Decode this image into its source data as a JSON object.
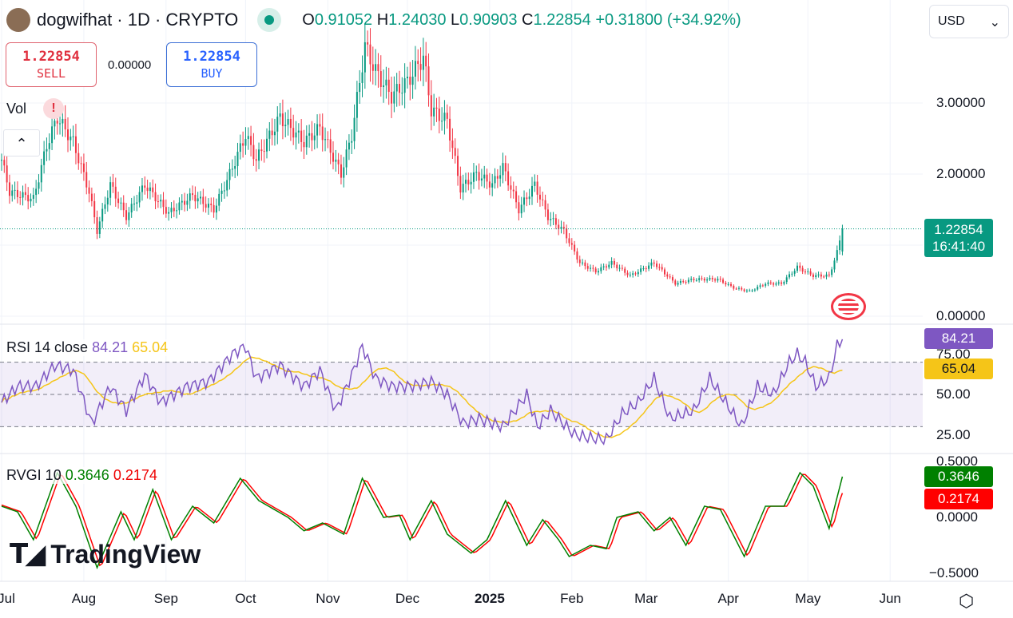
{
  "header": {
    "symbol": "dogwifhat · 1D · CRYPTO",
    "open_label": "O",
    "open": "0.91052",
    "high_label": "H",
    "high": "1.24030",
    "low_label": "L",
    "low": "0.90903",
    "close_label": "C",
    "close": "1.22854",
    "change": "+0.31800 (+34.92%)"
  },
  "trade": {
    "sell_price": "1.22854",
    "sell_label": "SELL",
    "spread": "0.00000",
    "buy_price": "1.22854",
    "buy_label": "BUY"
  },
  "currency": "USD",
  "vol_label": "Vol",
  "watermark": "TradingView",
  "colors": {
    "up": "#089981",
    "down": "#f23645",
    "rsi": "#7e57c2",
    "rsi_ma": "#f5c518",
    "rvgi": "#008000",
    "signal": "#ff0000"
  },
  "chart_data": [
    {
      "type": "candlestick",
      "name": "price",
      "x_unit": "days since 2024-07-01",
      "ylim": [
        0,
        4.4
      ],
      "y_ticks": [
        "3.00000",
        "2.00000",
        "0.00000"
      ],
      "y_tick_values": [
        3,
        2,
        0
      ],
      "last_price": "1.22854",
      "countdown": "16:41:40",
      "x_ticks": [
        {
          "label": "Jul",
          "day": 0
        },
        {
          "label": "Aug",
          "day": 31
        },
        {
          "label": "Sep",
          "day": 62
        },
        {
          "label": "Oct",
          "day": 92
        },
        {
          "label": "Nov",
          "day": 123
        },
        {
          "label": "Dec",
          "day": 153
        },
        {
          "label": "2025",
          "day": 184
        },
        {
          "label": "Feb",
          "day": 215
        },
        {
          "label": "Mar",
          "day": 243
        },
        {
          "label": "Apr",
          "day": 274
        },
        {
          "label": "May",
          "day": 304
        },
        {
          "label": "Jun",
          "day": 335
        }
      ],
      "closes": [
        [
          0,
          2.2
        ],
        [
          3,
          1.75
        ],
        [
          12,
          1.65
        ],
        [
          17,
          2.4
        ],
        [
          21,
          2.8
        ],
        [
          27,
          2.45
        ],
        [
          33,
          1.75
        ],
        [
          36,
          1.2
        ],
        [
          41,
          1.85
        ],
        [
          47,
          1.4
        ],
        [
          54,
          1.85
        ],
        [
          63,
          1.45
        ],
        [
          72,
          1.7
        ],
        [
          80,
          1.5
        ],
        [
          86,
          2.0
        ],
        [
          92,
          2.55
        ],
        [
          96,
          2.2
        ],
        [
          105,
          2.8
        ],
        [
          114,
          2.45
        ],
        [
          120,
          2.65
        ],
        [
          128,
          2.0
        ],
        [
          132,
          2.55
        ],
        [
          137,
          3.8
        ],
        [
          141,
          3.45
        ],
        [
          147,
          3.1
        ],
        [
          153,
          3.3
        ],
        [
          159,
          3.65
        ],
        [
          162,
          2.9
        ],
        [
          168,
          2.75
        ],
        [
          173,
          1.8
        ],
        [
          179,
          2.0
        ],
        [
          185,
          1.85
        ],
        [
          189,
          2.1
        ],
        [
          195,
          1.5
        ],
        [
          201,
          1.85
        ],
        [
          206,
          1.4
        ],
        [
          212,
          1.2
        ],
        [
          218,
          0.75
        ],
        [
          224,
          0.63
        ],
        [
          230,
          0.75
        ],
        [
          237,
          0.57
        ],
        [
          246,
          0.75
        ],
        [
          254,
          0.46
        ],
        [
          261,
          0.52
        ],
        [
          270,
          0.52
        ],
        [
          276,
          0.4
        ],
        [
          282,
          0.35
        ],
        [
          288,
          0.46
        ],
        [
          294,
          0.46
        ],
        [
          300,
          0.69
        ],
        [
          306,
          0.57
        ],
        [
          312,
          0.57
        ],
        [
          315,
          0.9
        ],
        [
          317,
          1.23
        ]
      ]
    },
    {
      "type": "line",
      "name": "RSI",
      "title": "RSI 14 close",
      "ylim": [
        0,
        100
      ],
      "y_ticks": [
        "75.00",
        "50.00",
        "25.00"
      ],
      "y_tick_values": [
        75,
        50,
        25
      ],
      "bands": [
        70,
        50,
        30
      ],
      "rsi_value": "84.21",
      "ma_value": "65.04",
      "rsi": [
        [
          0,
          45
        ],
        [
          6,
          55
        ],
        [
          13,
          55
        ],
        [
          20,
          68
        ],
        [
          27,
          65
        ],
        [
          34,
          32
        ],
        [
          41,
          55
        ],
        [
          47,
          40
        ],
        [
          54,
          62
        ],
        [
          60,
          45
        ],
        [
          70,
          55
        ],
        [
          78,
          58
        ],
        [
          87,
          75
        ],
        [
          92,
          80
        ],
        [
          96,
          60
        ],
        [
          105,
          68
        ],
        [
          114,
          55
        ],
        [
          120,
          65
        ],
        [
          126,
          40
        ],
        [
          132,
          62
        ],
        [
          136,
          80
        ],
        [
          141,
          60
        ],
        [
          147,
          55
        ],
        [
          154,
          55
        ],
        [
          162,
          58
        ],
        [
          168,
          50
        ],
        [
          174,
          32
        ],
        [
          180,
          35
        ],
        [
          189,
          30
        ],
        [
          198,
          50
        ],
        [
          202,
          30
        ],
        [
          207,
          40
        ],
        [
          216,
          25
        ],
        [
          222,
          23
        ],
        [
          228,
          22
        ],
        [
          234,
          38
        ],
        [
          240,
          45
        ],
        [
          246,
          60
        ],
        [
          252,
          35
        ],
        [
          261,
          40
        ],
        [
          267,
          60
        ],
        [
          271,
          50
        ],
        [
          279,
          30
        ],
        [
          285,
          55
        ],
        [
          291,
          50
        ],
        [
          297,
          70
        ],
        [
          300,
          75
        ],
        [
          303,
          70
        ],
        [
          307,
          55
        ],
        [
          312,
          60
        ],
        [
          315,
          80
        ],
        [
          317,
          84.21
        ]
      ]
    },
    {
      "type": "line",
      "name": "RVGI",
      "title": "RVGI 10",
      "ylim": [
        -0.6,
        0.6
      ],
      "y_ticks": [
        "0.5000",
        "0.0000",
        "−0.5000"
      ],
      "y_tick_values": [
        0.5,
        0,
        -0.5
      ],
      "rvgi_value": "0.3646",
      "signal_value": "0.2174",
      "rvgi": [
        [
          0,
          0.1
        ],
        [
          6,
          0.05
        ],
        [
          12,
          -0.2
        ],
        [
          21,
          0.4
        ],
        [
          28,
          0.1
        ],
        [
          36,
          -0.45
        ],
        [
          45,
          0.05
        ],
        [
          50,
          -0.2
        ],
        [
          57,
          0.25
        ],
        [
          64,
          -0.2
        ],
        [
          72,
          0.1
        ],
        [
          80,
          -0.05
        ],
        [
          90,
          0.35
        ],
        [
          97,
          0.15
        ],
        [
          108,
          0.0
        ],
        [
          114,
          -0.12
        ],
        [
          121,
          -0.05
        ],
        [
          129,
          -0.15
        ],
        [
          136,
          0.35
        ],
        [
          144,
          0.0
        ],
        [
          150,
          0.02
        ],
        [
          154,
          -0.2
        ],
        [
          162,
          0.15
        ],
        [
          168,
          -0.15
        ],
        [
          177,
          -0.32
        ],
        [
          183,
          -0.2
        ],
        [
          190,
          0.15
        ],
        [
          198,
          -0.25
        ],
        [
          204,
          -0.02
        ],
        [
          210,
          -0.2
        ],
        [
          214,
          -0.35
        ],
        [
          222,
          -0.25
        ],
        [
          228,
          -0.28
        ],
        [
          232,
          0.0
        ],
        [
          240,
          0.05
        ],
        [
          246,
          -0.12
        ],
        [
          252,
          0.0
        ],
        [
          258,
          -0.25
        ],
        [
          265,
          0.1
        ],
        [
          271,
          0.07
        ],
        [
          280,
          -0.35
        ],
        [
          288,
          0.1
        ],
        [
          295,
          0.1
        ],
        [
          301,
          0.4
        ],
        [
          306,
          0.28
        ],
        [
          312,
          -0.1
        ],
        [
          317,
          0.3646
        ]
      ]
    }
  ]
}
